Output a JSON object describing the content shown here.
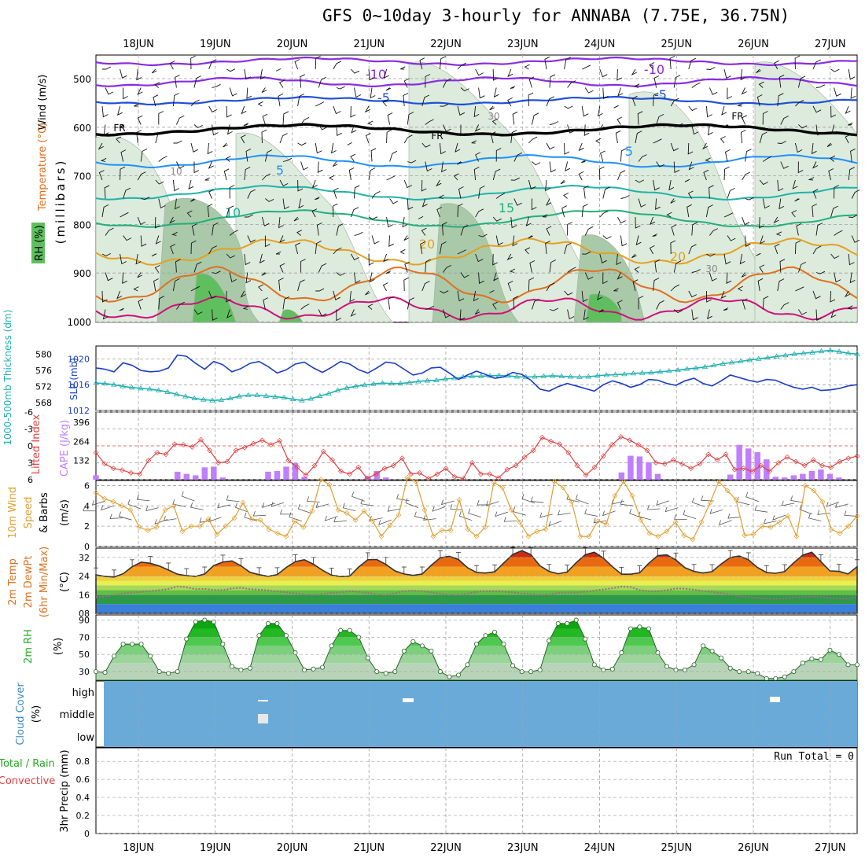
{
  "header": {
    "title": "GFS 0~10day 3-hourly for ANNABA (7.75E, 36.75N)"
  },
  "dates": [
    "18JUN",
    "19JUN",
    "20JUN",
    "21JUN",
    "22JUN",
    "23JUN",
    "24JUN",
    "25JUN",
    "26JUN",
    "27JUN"
  ],
  "colors": {
    "grid": "#a0a0a0",
    "temp_cold": "#8a2be2",
    "temp_minus5": "#1f4fd6",
    "temp_fr": "#000000",
    "temp_5": "#1e90ff",
    "temp_10": "#20b2aa",
    "temp_15": "#22b07a",
    "temp_20": "#e6a020",
    "temp_25": "#e07020",
    "temp_30": "#d0107a",
    "rh_light": "#dcebdc",
    "rh_mid": "#a9c9a9",
    "rh_dark": "#5fbf5f",
    "slp": "#1a3cc8",
    "thickness": "#20b0b0",
    "cape": "#bf7fff",
    "lifted": "#e04040",
    "wind10": "#e0a030",
    "temp2m": "#333333",
    "dew2m": "#aa6688",
    "rh2m": "#22aa22",
    "cloud": "#6aaad8"
  },
  "panels": {
    "upper": {
      "ylabel_wind": "Wind (m/s)",
      "ylabel_temp": "Temperature (°C)",
      "ylabel_rh": "RH (%)",
      "ylabel_mb": "(millibars)",
      "yticks": [
        "500",
        "600",
        "700",
        "800",
        "900",
        "1000"
      ],
      "contour_labels": [
        "-10",
        "-10",
        "-5",
        "-5",
        "FR",
        "FR",
        "FR",
        "5",
        "5",
        "10",
        "15",
        "20",
        "20",
        "10",
        "30",
        "30"
      ]
    },
    "slp": {
      "ylabel_thick": "1000-500mb Thickness (dm)",
      "ylabel_slp": "SLP (mb)",
      "yticks_left": [
        "580",
        "576",
        "572",
        "568"
      ],
      "yticks_right": [
        "1020",
        "1016",
        "1012"
      ]
    },
    "cape": {
      "ylabel_li": "Lifted Index",
      "ylabel_cape": "CAPE (J/kg)",
      "yticks_left": [
        "-6",
        "-3",
        "0",
        "3",
        "6"
      ],
      "yticks_right": [
        "396",
        "264",
        "132"
      ]
    },
    "wind10": {
      "ylabel_1": "10m Wind",
      "ylabel_2": "Speed",
      "ylabel_3": "& Barbs",
      "ylabel_unit": "(m/s)",
      "yticks": [
        "6",
        "4",
        "2",
        "0"
      ]
    },
    "temp2m": {
      "ylabel_1": "2m Temp",
      "ylabel_2": "2m DewPt",
      "ylabel_3": "(6hr Min/Max)",
      "ylabel_unit": "(°C)",
      "yticks": [
        "32",
        "24",
        "16",
        "08"
      ]
    },
    "rh2m": {
      "ylabel": "2m RH",
      "ylabel_unit": "(%)",
      "yticks": [
        "90",
        "70",
        "50",
        "30"
      ]
    },
    "cloud": {
      "ylabel": "Cloud Cover",
      "ylabel_unit": "(%)",
      "yticks": [
        "high",
        "middle",
        "low"
      ]
    },
    "precip": {
      "ylabel_1": "Total / Rain",
      "ylabel_2": "Convective",
      "ylabel_3": "3hr Precip (mm)",
      "yticks": [
        "0.8",
        "0.6",
        "0.4",
        "0.2",
        "0"
      ],
      "run_total": "Run Total = 0"
    }
  },
  "chart_data": [
    {
      "type": "line",
      "name": "slp",
      "unit": "mb",
      "x_step_hours": 3,
      "values": [
        1018.6,
        1018.4,
        1018.0,
        1019.4,
        1019.0,
        1018.2,
        1018.0,
        1018.1,
        1018.6,
        1020.6,
        1020.4,
        1019.3,
        1018.4,
        1019.6,
        1019.1,
        1018.0,
        1018.5,
        1019.3,
        1019.6,
        1018.8,
        1017.8,
        1018.3,
        1019.2,
        1019.5,
        1018.6,
        1017.9,
        1018.7,
        1019.6,
        1019.2,
        1018.3,
        1017.8,
        1018.6,
        1019.5,
        1019.3,
        1018.4,
        1017.5,
        1017.8,
        1018.6,
        1018.7,
        1017.8,
        1016.8,
        1017.5,
        1018.1,
        1017.6,
        1017.0,
        1017.2,
        1017.9,
        1017.6,
        1016.7,
        1015.3,
        1015.0,
        1015.7,
        1016.2,
        1015.8,
        1015.4,
        1015.0,
        1016.0,
        1016.6,
        1016.2,
        1015.6,
        1016.0,
        1016.8,
        1016.7,
        1016.2,
        1015.9,
        1016.6,
        1017.0,
        1016.2,
        1015.8,
        1016.6,
        1017.5,
        1017.1,
        1016.7,
        1016.4,
        1016.8,
        1016.7,
        1016.1,
        1015.6,
        1015.3,
        1015.6,
        1015.1,
        1015.2,
        1015.4,
        1015.8,
        1016.0
      ],
      "ylim": [
        1012,
        1022
      ]
    },
    {
      "type": "line",
      "name": "thickness",
      "unit": "dm",
      "x_step_hours": 3,
      "values": [
        572.8,
        572.7,
        572.4,
        572.0,
        571.7,
        571.5,
        571.3,
        571.0,
        570.6,
        570.0,
        569.5,
        569.0,
        568.7,
        568.5,
        568.6,
        569.0,
        569.5,
        569.8,
        569.8,
        569.6,
        569.4,
        569.2,
        568.8,
        568.5,
        568.9,
        569.6,
        570.2,
        571.0,
        571.6,
        572.0,
        572.3,
        572.6,
        572.8,
        572.7,
        572.7,
        572.9,
        573.2,
        573.4,
        573.5,
        573.8,
        574.0,
        574.3,
        574.5,
        574.5,
        574.6,
        574.7,
        574.6,
        574.4,
        574.3,
        574.4,
        574.5,
        574.6,
        574.5,
        574.4,
        574.3,
        574.4,
        574.6,
        574.8,
        574.9,
        575.0,
        575.2,
        575.3,
        575.4,
        575.6,
        575.8,
        576.0,
        576.3,
        576.5,
        576.8,
        577.2,
        577.6,
        577.9,
        578.2,
        578.5,
        578.8,
        579.1,
        579.4,
        579.7,
        580.0,
        580.2,
        580.4,
        580.7,
        580.9,
        580.6,
        580.2,
        580.0
      ],
      "ylim": [
        566,
        582
      ]
    },
    {
      "type": "bar",
      "name": "cape",
      "unit": "J/kg",
      "x_step_hours": 3,
      "values": [
        30,
        0,
        0,
        0,
        0,
        0,
        0,
        0,
        0,
        55,
        40,
        30,
        85,
        90,
        15,
        0,
        0,
        0,
        0,
        55,
        60,
        90,
        115,
        20,
        0,
        0,
        0,
        0,
        0,
        0,
        25,
        60,
        15,
        0,
        0,
        0,
        0,
        0,
        0,
        0,
        0,
        0,
        0,
        0,
        0,
        0,
        0,
        0,
        0,
        0,
        0,
        0,
        0,
        5,
        5,
        0,
        0,
        0,
        50,
        165,
        160,
        120,
        40,
        0,
        0,
        0,
        0,
        0,
        0,
        0,
        35,
        240,
        215,
        190,
        140,
        20,
        15,
        30,
        40,
        60,
        70,
        40,
        15,
        0,
        0
      ],
      "ylim": [
        0,
        396
      ]
    },
    {
      "type": "line",
      "name": "lifted_index",
      "x_step_hours": 3,
      "values": [
        1.2,
        3.2,
        4.0,
        4.3,
        4.8,
        5.0,
        2.6,
        1.2,
        1.5,
        -0.3,
        -0.2,
        0.2,
        -1.1,
        0.8,
        3.0,
        2.8,
        0.8,
        0.3,
        -0.4,
        -1.0,
        -0.2,
        -0.9,
        2.6,
        3.8,
        5.2,
        3.5,
        1.0,
        2.5,
        4.5,
        5.0,
        3.8,
        5.8,
        5.0,
        4.0,
        3.5,
        2.2,
        5.0,
        4.8,
        5.8,
        5.0,
        4.0,
        5.5,
        5.8,
        3.0,
        5.0,
        5.0,
        5.7,
        4.2,
        3.5,
        2.0,
        0.8,
        -1.5,
        -0.8,
        -0.3,
        1.2,
        3.5,
        5.2,
        3.8,
        1.8,
        -0.2,
        -1.6,
        -1.0,
        -0.2,
        0.8,
        3.0,
        3.2,
        2.5,
        3.2,
        4.0,
        3.2,
        1.5,
        2.5,
        1.5,
        4.2,
        4.0,
        4.5,
        3.5,
        4.5,
        3.0,
        2.0,
        2.8,
        3.5,
        2.5,
        3.5,
        3.8,
        2.8,
        2.2,
        1.8
      ],
      "ylim": [
        6,
        -6
      ]
    },
    {
      "type": "line",
      "name": "wind10m_speed",
      "unit": "m/s",
      "x_step_hours": 3,
      "values": [
        5.3,
        4.7,
        4.4,
        4.0,
        3.6,
        1.9,
        1.6,
        1.9,
        3.6,
        4.0,
        1.5,
        2.0,
        2.0,
        2.7,
        1.2,
        2.0,
        2.8,
        4.3,
        2.7,
        2.6,
        1.7,
        1.3,
        1.0,
        2.5,
        1.9,
        3.5,
        6.6,
        6.1,
        3.6,
        3.3,
        2.6,
        3.5,
        2.5,
        1.0,
        2.1,
        3.1,
        6.8,
        6.4,
        3.6,
        1.0,
        1.6,
        1.6,
        4.6,
        1.7,
        1.0,
        1.9,
        6.3,
        5.8,
        3.6,
        2.4,
        1.0,
        1.5,
        1.7,
        6.4,
        5.8,
        4.4,
        1.0,
        1.0,
        2.5,
        2.2,
        5.0,
        6.4,
        5.0,
        2.6,
        1.3,
        1.0,
        1.5,
        2.4,
        1.1,
        0.7,
        2.4,
        4.3,
        6.4,
        5.5,
        4.6,
        1.1,
        1.2,
        2.0,
        1.9,
        2.4,
        3.0,
        1.0,
        6.0,
        5.5,
        4.4,
        1.7,
        1.3,
        2.0,
        3.0
      ],
      "ylim": [
        0,
        6.5
      ]
    },
    {
      "type": "area",
      "name": "temp2m",
      "unit": "°C",
      "x_step_hours": 3,
      "values": [
        24.5,
        23.9,
        23.6,
        25.0,
        28.0,
        30.0,
        29.5,
        28.3,
        26.6,
        24.8,
        24.2,
        23.9,
        24.9,
        28.5,
        30.0,
        30.5,
        28.4,
        25.6,
        24.6,
        23.9,
        24.6,
        27.7,
        30.2,
        31.0,
        29.1,
        26.5,
        24.4,
        23.8,
        24.0,
        27.9,
        31.0,
        31.1,
        29.0,
        26.2,
        24.9,
        24.3,
        24.9,
        28.6,
        31.9,
        32.5,
        31.1,
        27.6,
        25.5,
        25.3,
        25.8,
        29.6,
        33.3,
        34.9,
        33.2,
        28.4,
        26.0,
        25.0,
        25.7,
        29.8,
        33.2,
        34.2,
        31.7,
        28.0,
        24.8,
        24.8,
        25.4,
        29.5,
        32.8,
        33.1,
        30.9,
        27.6,
        26.0,
        25.3,
        25.9,
        29.2,
        32.0,
        32.6,
        31.0,
        27.7,
        25.5,
        25.2,
        25.9,
        29.7,
        33.0,
        34.2,
        30.2,
        26.2,
        26.0,
        24.9,
        28.0
      ],
      "ylim": [
        8,
        36
      ]
    },
    {
      "type": "line",
      "name": "dewpoint2m",
      "unit": "°C",
      "x_step_hours": 3,
      "values": [
        15.0,
        15.2,
        16.0,
        16.5,
        17.0,
        17.2,
        17.6,
        18.0,
        18.5,
        19.6,
        19.2,
        18.4,
        18.5,
        18.1,
        18.0,
        18.7,
        19.0,
        18.4,
        18.2,
        17.9,
        17.4,
        17.0,
        16.6,
        16.2,
        16.0,
        16.3,
        16.8,
        17.0,
        17.5,
        17.2,
        16.8,
        16.2,
        16.0,
        16.6,
        17.6,
        17.8,
        17.5,
        17.0,
        16.5,
        16.0,
        16.0,
        16.5,
        17.2,
        17.6,
        17.5,
        17.3,
        17.0,
        16.5,
        16.3,
        16.0,
        16.2,
        16.8,
        17.0,
        16.9,
        17.3,
        17.8,
        18.3,
        18.8,
        19.5,
        19.3,
        18.0,
        17.5,
        17.4,
        18.0,
        18.7,
        18.6,
        18.2,
        17.6,
        17.2,
        16.7,
        16.2,
        15.3,
        15.0,
        14.6,
        14.4,
        14.2,
        14.4,
        14.8,
        15.0,
        15.2,
        15.0,
        14.5,
        14.5,
        14.2,
        15.0
      ],
      "ylim": [
        8,
        36
      ]
    },
    {
      "type": "area",
      "name": "rh2m",
      "unit": "%",
      "x_step_hours": 3,
      "values": [
        30,
        29,
        48,
        62,
        62,
        62,
        48,
        30,
        28,
        30,
        68,
        88,
        90,
        88,
        62,
        36,
        32,
        34,
        72,
        86,
        86,
        72,
        52,
        32,
        33,
        35,
        60,
        78,
        78,
        70,
        46,
        30,
        28,
        30,
        54,
        65,
        60,
        54,
        30,
        24,
        26,
        38,
        62,
        72,
        76,
        62,
        37,
        30,
        30,
        32,
        66,
        86,
        86,
        90,
        68,
        38,
        32,
        33,
        52,
        80,
        82,
        80,
        52,
        36,
        32,
        32,
        38,
        60,
        54,
        46,
        34,
        30,
        30,
        28,
        22,
        22,
        24,
        30,
        40,
        45,
        44,
        55,
        50,
        38,
        38
      ],
      "ylim": [
        20,
        96
      ]
    }
  ]
}
